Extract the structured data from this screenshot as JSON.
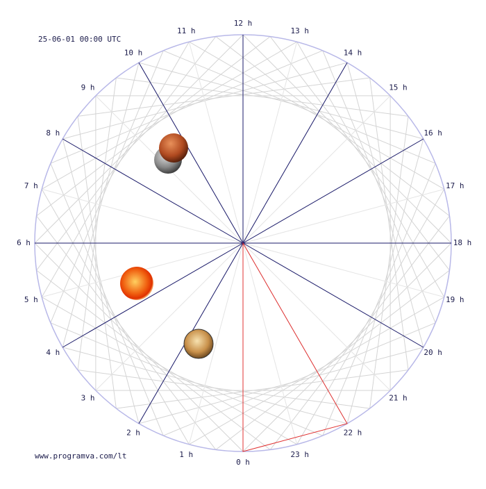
{
  "header": {
    "timestamp": "25-06-01 00:00 UTC"
  },
  "hours": [
    "0 h",
    "1 h",
    "2 h",
    "3 h",
    "4 h",
    "5 h",
    "6 h",
    "7 h",
    "8 h",
    "9 h",
    "10 h",
    "11 h",
    "12 h",
    "13 h",
    "14 h",
    "15 h",
    "16 h",
    "17 h",
    "18 h",
    "19 h",
    "20 h",
    "21 h",
    "22 h",
    "23 h"
  ],
  "footer": {
    "site": "www.programva.com/lt"
  }
}
